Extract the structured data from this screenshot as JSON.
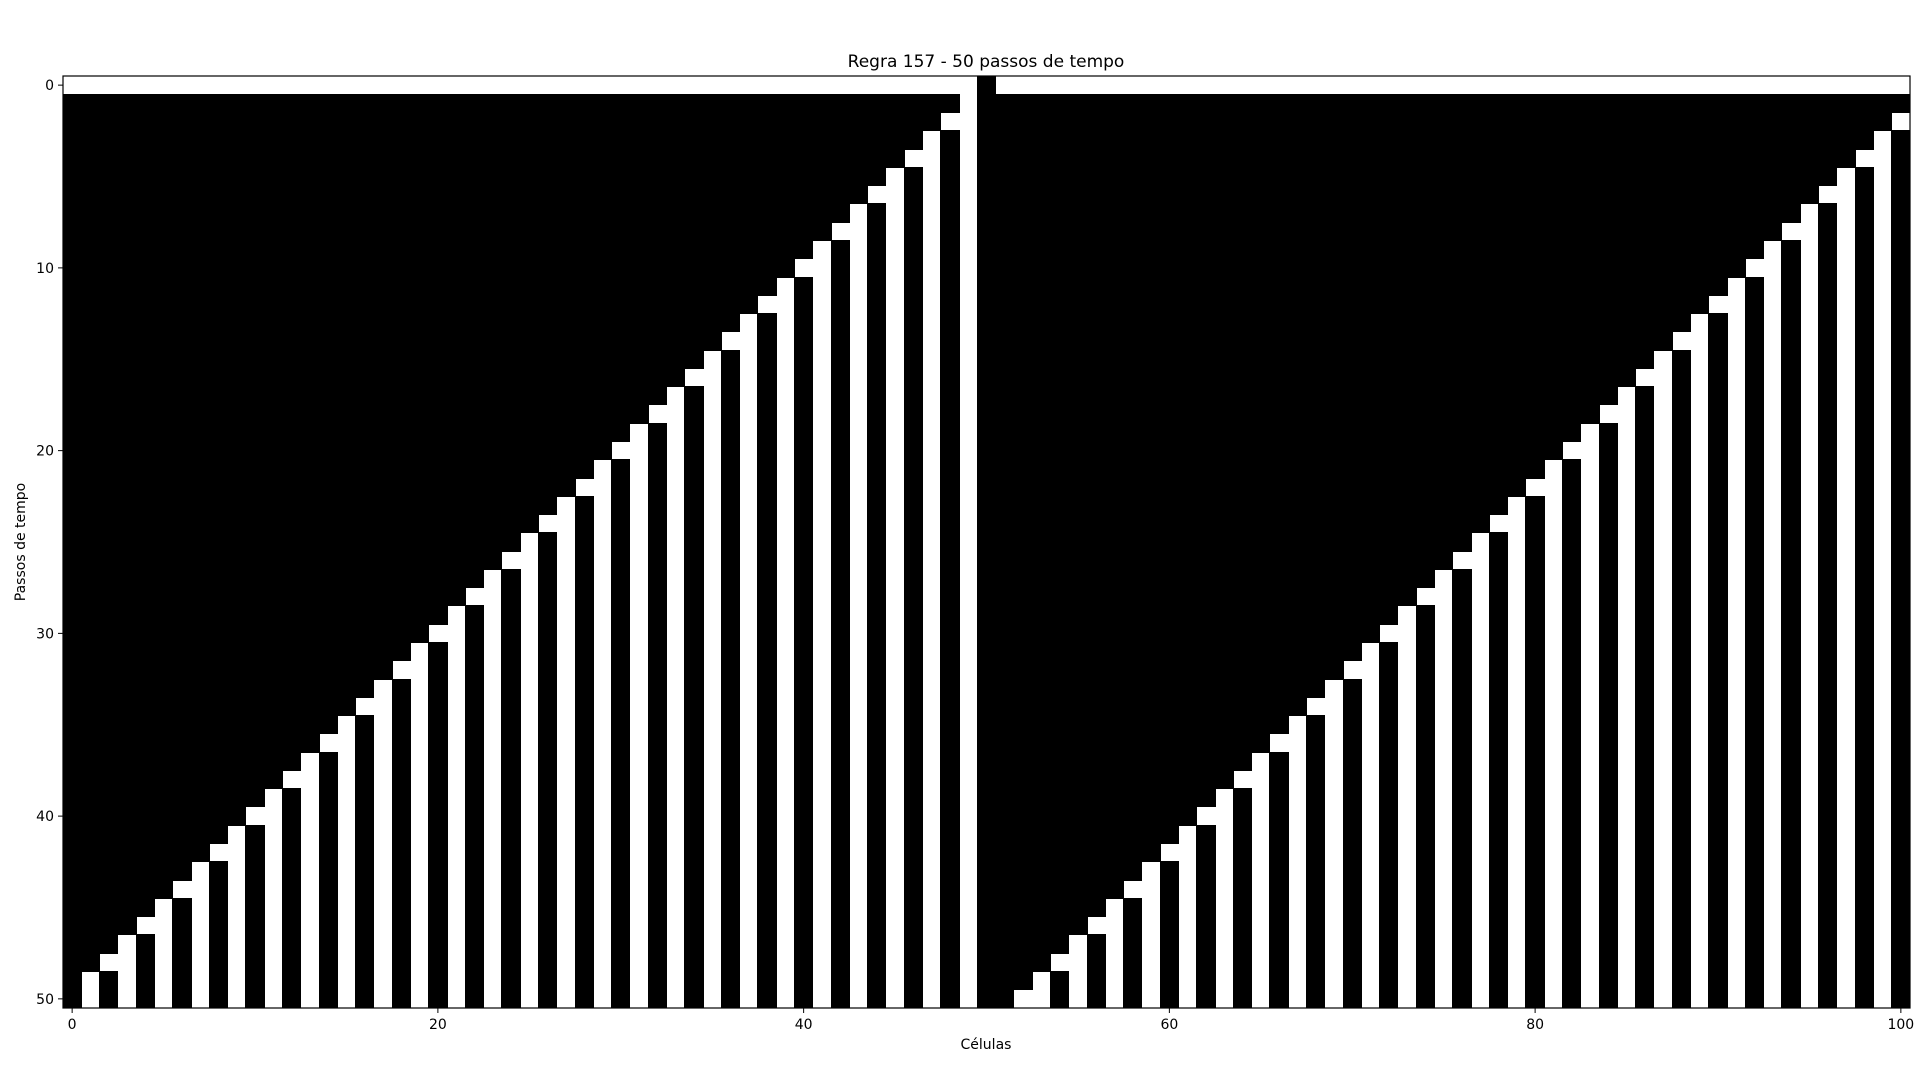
{
  "chart_data": {
    "type": "heatmap",
    "title": "Regra 157 - 50 passos de tempo",
    "xlabel": "Células",
    "ylabel": "Passos de tempo",
    "rule": 157,
    "cells": 101,
    "steps": 50,
    "initial_state": "single black cell at index 50, all others white",
    "colormap": {
      "1": "#000000",
      "0": "#ffffff"
    },
    "xlim": [
      -0.5,
      100.5
    ],
    "ylim": [
      50.5,
      -0.5
    ],
    "x_ticks": [
      0,
      20,
      40,
      60,
      80,
      100
    ],
    "y_ticks": [
      0,
      10,
      20,
      30,
      40,
      50
    ],
    "grid": false,
    "legend": "none"
  }
}
